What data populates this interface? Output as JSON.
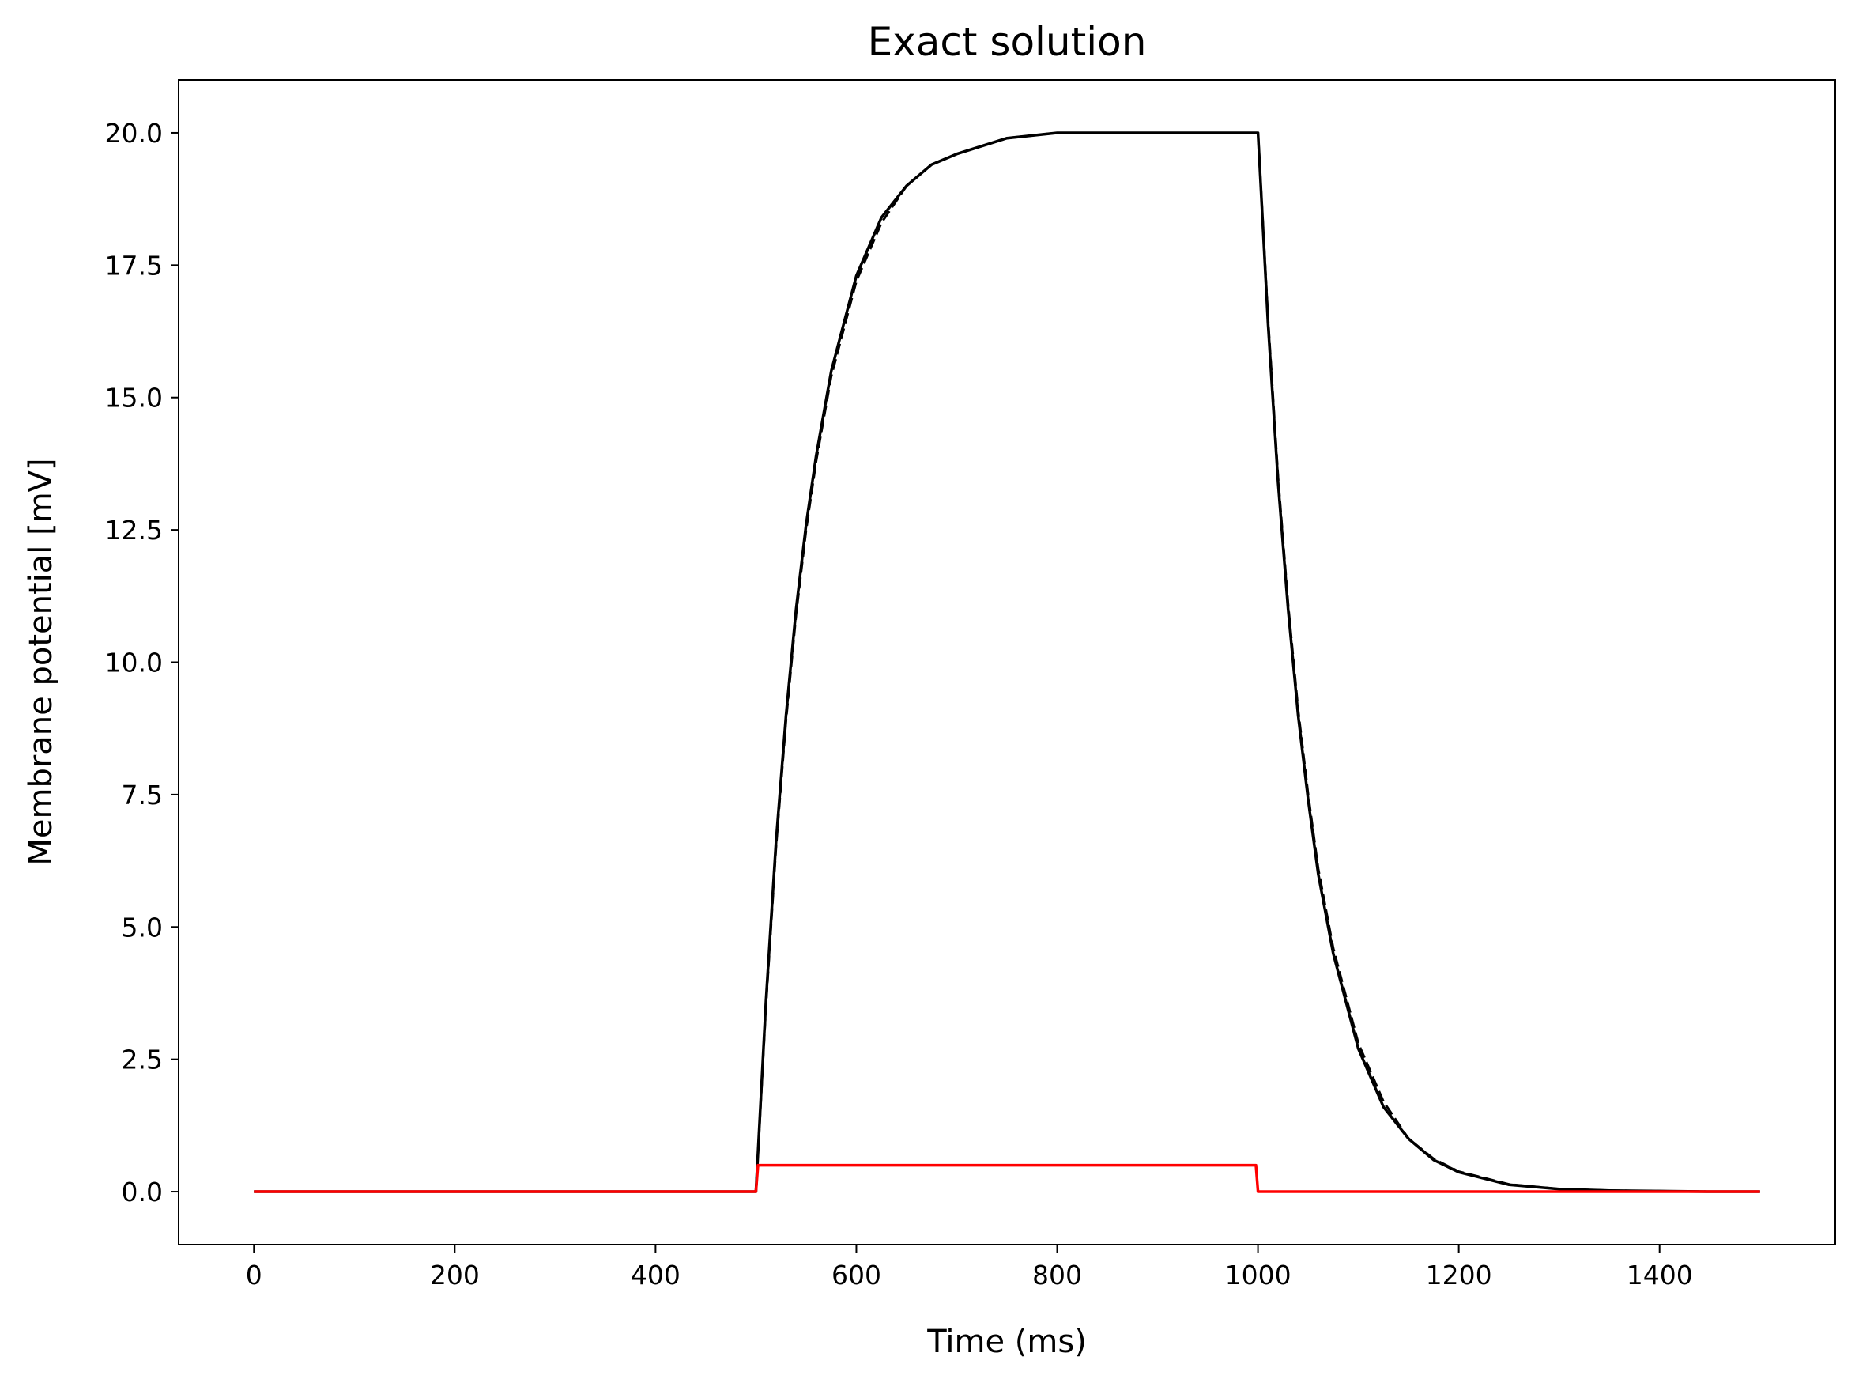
{
  "chart_data": {
    "type": "line",
    "title": "Exact solution",
    "xlabel": "Time (ms)",
    "ylabel": "Membrane potential [mV]",
    "xlim": [
      -75,
      1575
    ],
    "ylim": [
      -1.0,
      21.0
    ],
    "xticks": [
      0,
      200,
      400,
      600,
      800,
      1000,
      1200,
      1400
    ],
    "xtick_labels": [
      "0",
      "200",
      "400",
      "600",
      "800",
      "1000",
      "1200",
      "1400"
    ],
    "yticks": [
      0.0,
      2.5,
      5.0,
      7.5,
      10.0,
      12.5,
      15.0,
      17.5,
      20.0
    ],
    "ytick_labels": [
      "0.0",
      "2.5",
      "5.0",
      "7.5",
      "10.0",
      "12.5",
      "15.0",
      "17.5",
      "20.0"
    ],
    "grid": false,
    "series": [
      {
        "style": "solid",
        "color": "#000000",
        "x": [
          0,
          500,
          510,
          520,
          530,
          540,
          550,
          560,
          575,
          600,
          625,
          650,
          675,
          700,
          750,
          800,
          850,
          900,
          950,
          1000,
          1010,
          1020,
          1030,
          1040,
          1050,
          1060,
          1075,
          1100,
          1125,
          1150,
          1175,
          1200,
          1250,
          1300,
          1350,
          1400,
          1450,
          1500
        ],
        "y": [
          0,
          0,
          3.6,
          6.6,
          9.0,
          11.0,
          12.6,
          13.9,
          15.5,
          17.3,
          18.4,
          19.0,
          19.4,
          19.6,
          19.9,
          20.0,
          20.0,
          20.0,
          20.0,
          20.0,
          16.4,
          13.4,
          11.0,
          9.0,
          7.4,
          6.0,
          4.5,
          2.7,
          1.6,
          1.0,
          0.6,
          0.37,
          0.13,
          0.05,
          0.02,
          0.01,
          0.0,
          0.0
        ]
      },
      {
        "style": "dashed",
        "color": "#000000",
        "x": [
          0,
          500,
          510,
          520,
          530,
          540,
          550,
          560,
          575,
          600,
          625,
          650,
          675,
          700,
          750,
          800,
          850,
          900,
          950,
          1000,
          1010,
          1020,
          1030,
          1040,
          1050,
          1060,
          1075,
          1100,
          1125,
          1150,
          1175,
          1200,
          1250,
          1300,
          1350,
          1400,
          1450,
          1500
        ],
        "y": [
          0,
          0,
          3.5,
          6.5,
          8.9,
          10.9,
          12.5,
          13.8,
          15.4,
          17.2,
          18.3,
          19.0,
          19.4,
          19.6,
          19.9,
          20.0,
          20.0,
          20.0,
          20.0,
          20.0,
          16.5,
          13.5,
          11.1,
          9.1,
          7.5,
          6.1,
          4.6,
          2.8,
          1.7,
          1.0,
          0.62,
          0.38,
          0.14,
          0.05,
          0.02,
          0.01,
          0.0,
          0.0
        ]
      },
      {
        "style": "solid",
        "color": "#ff0000",
        "x": [
          0,
          500,
          502,
          998,
          1000,
          1500
        ],
        "y": [
          0,
          0,
          0.5,
          0.5,
          0,
          0
        ]
      }
    ]
  }
}
